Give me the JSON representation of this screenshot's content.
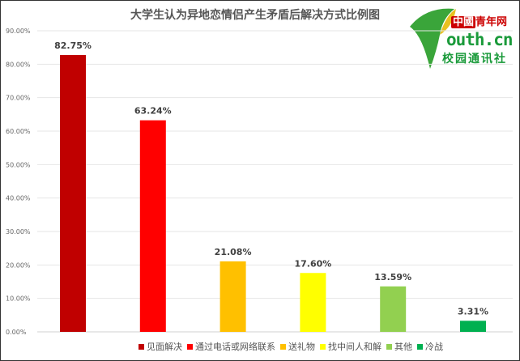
{
  "chart_data": {
    "type": "bar",
    "title": "大学生认为异地恋情侣产生矛盾后解决方式比例图",
    "categories": [
      "见面解决",
      "通过电话或网络联系",
      "送礼物",
      "找中间人和解",
      "其他",
      "冷战"
    ],
    "values": [
      82.75,
      63.24,
      21.08,
      17.6,
      13.59,
      3.31
    ],
    "data_labels": [
      "82.75%",
      "63.24%",
      "21.08%",
      "17.60%",
      "13.59%",
      "3.31%"
    ],
    "colors": [
      "#c00000",
      "#ff0000",
      "#ffc000",
      "#ffff00",
      "#92d050",
      "#00b050"
    ],
    "ylim": [
      0,
      90
    ],
    "yticks": [
      "0.00%",
      "10.00%",
      "20.00%",
      "30.00%",
      "40.00%",
      "50.00%",
      "60.00%",
      "70.00%",
      "80.00%",
      "90.00%"
    ],
    "grid": true,
    "legend_position": "bottom"
  },
  "logo": {
    "line1_cn": "中國",
    "line1": "青年网",
    "line2": "outh.cn",
    "line3": "校园通讯社"
  }
}
